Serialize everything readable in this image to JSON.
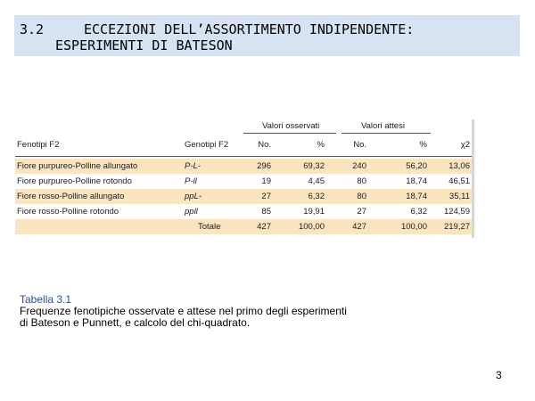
{
  "header": {
    "number": "3.2",
    "title_line1": "ECCEZIONI DELL’ASSORTIMENTO INDIPENDENTE:",
    "title_line2": "ESPERIMENTI DI BATESON"
  },
  "table": {
    "group_observed": "Valori osservati",
    "group_expected": "Valori attesi",
    "columns": [
      "Fenotipi F2",
      "Genotipi F2",
      "No.",
      "%",
      "No.",
      "%",
      "χ2"
    ],
    "rows": [
      [
        "Fiore purpureo-Polline allungato",
        "P-L-",
        "296",
        "69,32",
        "240",
        "56,20",
        "13,06"
      ],
      [
        "Fiore purpureo-Polline rotondo",
        "P-ll",
        "19",
        "4,45",
        "80",
        "18,74",
        "46,51"
      ],
      [
        "Fiore rosso-Polline allungato",
        "ppL-",
        "27",
        "6,32",
        "80",
        "18,74",
        "35,11"
      ],
      [
        "Fiore rosso-Polline rotondo",
        "ppll",
        "85",
        "19,91",
        "27",
        "6,32",
        "124,59"
      ]
    ],
    "total": [
      "Totale",
      "427",
      "100,00",
      "427",
      "100,00",
      "219,27"
    ]
  },
  "caption": {
    "title": "Tabella 3.1",
    "line1": "Frequenze fenotipiche osservate e attese nel primo degli esperimenti",
    "line2": "di Bateson e Punnett, e calcolo del chi-quadrato."
  },
  "page_number": "3"
}
